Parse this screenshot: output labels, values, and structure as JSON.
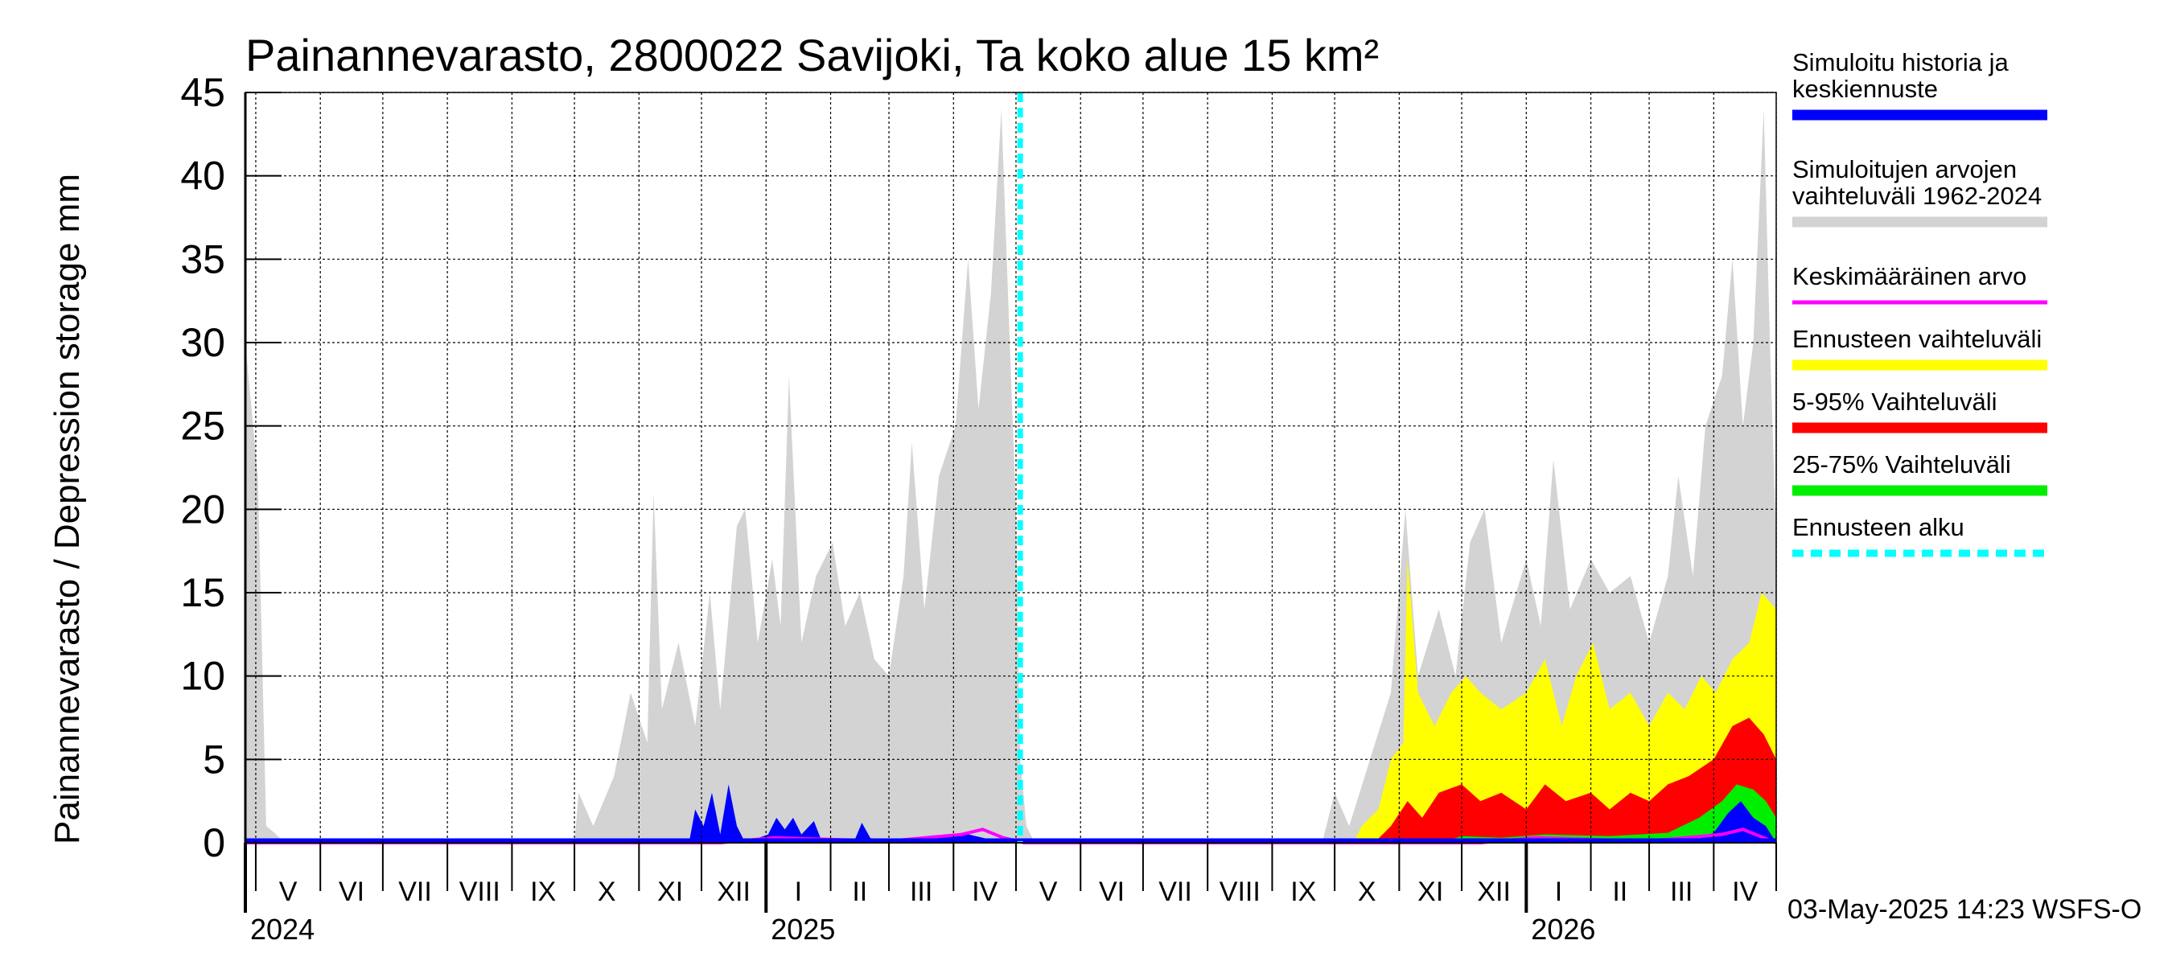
{
  "chart_data": {
    "type": "area",
    "title": "Painannevarasto, 2800022 Savijoki, Ta koko alue 15 km²",
    "ylabel": "Painannevarasto / Depression storage    mm",
    "ylim": [
      0,
      45
    ],
    "yticks": [
      0,
      5,
      10,
      15,
      20,
      25,
      30,
      35,
      40,
      45
    ],
    "x_range": [
      "2024-04-26",
      "2026-05-01"
    ],
    "forecast_start": "2025-05-03",
    "months": [
      {
        "label": "V",
        "date": "2024-05-01"
      },
      {
        "label": "VI",
        "date": "2024-06-01"
      },
      {
        "label": "VII",
        "date": "2024-07-01"
      },
      {
        "label": "VIII",
        "date": "2024-08-01"
      },
      {
        "label": "IX",
        "date": "2024-09-01"
      },
      {
        "label": "X",
        "date": "2024-10-01"
      },
      {
        "label": "XI",
        "date": "2024-11-01"
      },
      {
        "label": "XII",
        "date": "2024-12-01"
      },
      {
        "label": "I",
        "date": "2025-01-01"
      },
      {
        "label": "II",
        "date": "2025-02-01"
      },
      {
        "label": "III",
        "date": "2025-03-01"
      },
      {
        "label": "IV",
        "date": "2025-04-01"
      },
      {
        "label": "V",
        "date": "2025-05-01"
      },
      {
        "label": "VI",
        "date": "2025-06-01"
      },
      {
        "label": "VII",
        "date": "2025-07-01"
      },
      {
        "label": "VIII",
        "date": "2025-08-01"
      },
      {
        "label": "IX",
        "date": "2025-09-01"
      },
      {
        "label": "X",
        "date": "2025-10-01"
      },
      {
        "label": "XI",
        "date": "2025-11-01"
      },
      {
        "label": "XII",
        "date": "2025-12-01"
      },
      {
        "label": "I",
        "date": "2026-01-01"
      },
      {
        "label": "II",
        "date": "2026-02-01"
      },
      {
        "label": "III",
        "date": "2026-03-01"
      },
      {
        "label": "IV",
        "date": "2026-04-01"
      },
      {
        "label": "",
        "date": "2026-05-01"
      }
    ],
    "years": [
      {
        "label": "2024",
        "date": "2024-04-26"
      },
      {
        "label": "2025",
        "date": "2025-01-01"
      },
      {
        "label": "2026",
        "date": "2026-01-01"
      }
    ],
    "series": [
      {
        "name": "Simuloitujen arvojen vaihteluväli 1962-2024",
        "color": "#d3d3d3",
        "kind": "band",
        "points": [
          [
            "2024-04-26",
            0,
            30
          ],
          [
            "2024-05-02",
            0,
            22
          ],
          [
            "2024-05-06",
            0,
            1
          ],
          [
            "2024-05-10",
            0,
            0.6
          ],
          [
            "2024-05-15",
            0,
            0
          ],
          [
            "2024-10-01",
            0,
            0
          ],
          [
            "2024-10-03",
            0,
            3
          ],
          [
            "2024-10-10",
            0,
            1
          ],
          [
            "2024-10-20",
            0,
            4
          ],
          [
            "2024-10-28",
            0,
            9
          ],
          [
            "2024-11-05",
            0,
            6
          ],
          [
            "2024-11-08",
            0,
            21
          ],
          [
            "2024-11-12",
            0,
            8
          ],
          [
            "2024-11-20",
            0,
            12
          ],
          [
            "2024-11-28",
            0,
            7
          ],
          [
            "2024-12-05",
            0,
            15
          ],
          [
            "2024-12-10",
            0,
            8
          ],
          [
            "2024-12-18",
            0,
            19
          ],
          [
            "2024-12-22",
            0,
            20
          ],
          [
            "2024-12-28",
            0,
            12
          ],
          [
            "2025-01-04",
            0,
            17
          ],
          [
            "2025-01-08",
            0,
            13
          ],
          [
            "2025-01-12",
            0,
            28
          ],
          [
            "2025-01-18",
            0,
            12
          ],
          [
            "2025-01-25",
            0,
            16
          ],
          [
            "2025-02-02",
            0,
            18
          ],
          [
            "2025-02-08",
            0,
            13
          ],
          [
            "2025-02-15",
            0,
            15
          ],
          [
            "2025-02-22",
            0,
            11
          ],
          [
            "2025-03-01",
            0,
            10
          ],
          [
            "2025-03-08",
            0,
            16
          ],
          [
            "2025-03-12",
            0,
            24
          ],
          [
            "2025-03-18",
            0,
            14
          ],
          [
            "2025-03-25",
            0,
            22
          ],
          [
            "2025-04-02",
            0,
            25
          ],
          [
            "2025-04-08",
            0,
            35
          ],
          [
            "2025-04-13",
            0,
            26
          ],
          [
            "2025-04-19",
            0,
            33
          ],
          [
            "2025-04-24",
            0,
            44
          ],
          [
            "2025-04-28",
            0,
            30
          ],
          [
            "2025-05-01",
            0,
            20
          ],
          [
            "2025-05-03",
            0,
            5
          ],
          [
            "2025-05-06",
            0,
            1
          ],
          [
            "2025-05-10",
            0,
            0
          ],
          [
            "2025-09-25",
            0,
            0
          ],
          [
            "2025-10-01",
            0,
            3
          ],
          [
            "2025-10-08",
            0,
            1
          ],
          [
            "2025-10-18",
            0,
            5
          ],
          [
            "2025-10-28",
            0,
            9
          ],
          [
            "2025-11-04",
            0,
            20
          ],
          [
            "2025-11-10",
            0,
            10
          ],
          [
            "2025-11-20",
            0,
            14
          ],
          [
            "2025-11-28",
            0,
            10
          ],
          [
            "2025-12-05",
            0,
            18
          ],
          [
            "2025-12-12",
            0,
            20
          ],
          [
            "2025-12-20",
            0,
            12
          ],
          [
            "2026-01-01",
            0,
            17
          ],
          [
            "2026-01-08",
            0,
            13
          ],
          [
            "2026-01-14",
            0,
            23
          ],
          [
            "2026-01-22",
            0,
            14
          ],
          [
            "2026-02-01",
            0,
            17
          ],
          [
            "2026-02-10",
            0,
            15
          ],
          [
            "2026-02-20",
            0,
            16
          ],
          [
            "2026-03-01",
            0,
            12
          ],
          [
            "2026-03-10",
            0,
            16
          ],
          [
            "2026-03-15",
            0,
            22
          ],
          [
            "2026-03-22",
            0,
            16
          ],
          [
            "2026-03-28",
            0,
            25
          ],
          [
            "2026-04-05",
            0,
            28
          ],
          [
            "2026-04-10",
            0,
            35
          ],
          [
            "2026-04-15",
            0,
            25
          ],
          [
            "2026-04-20",
            0,
            30
          ],
          [
            "2026-04-25",
            0,
            44
          ],
          [
            "2026-04-28",
            0,
            30
          ],
          [
            "2026-05-01",
            0,
            18
          ]
        ]
      },
      {
        "name": "Ennusteen vaihteluväli",
        "color": "#ffff00",
        "kind": "band",
        "points": [
          [
            "2025-10-10",
            0,
            0
          ],
          [
            "2025-10-14",
            0,
            1
          ],
          [
            "2025-10-22",
            0,
            2
          ],
          [
            "2025-10-28",
            0,
            5
          ],
          [
            "2025-11-03",
            0,
            6
          ],
          [
            "2025-11-05",
            0,
            17
          ],
          [
            "2025-11-10",
            0,
            9
          ],
          [
            "2025-11-18",
            0,
            7
          ],
          [
            "2025-11-26",
            0,
            9
          ],
          [
            "2025-12-03",
            0,
            10
          ],
          [
            "2025-12-10",
            0,
            9
          ],
          [
            "2025-12-20",
            0,
            8
          ],
          [
            "2026-01-01",
            0,
            9
          ],
          [
            "2026-01-10",
            0,
            11
          ],
          [
            "2026-01-18",
            0,
            7
          ],
          [
            "2026-01-25",
            0,
            10
          ],
          [
            "2026-02-02",
            0,
            12
          ],
          [
            "2026-02-10",
            0,
            8
          ],
          [
            "2026-02-20",
            0,
            9
          ],
          [
            "2026-03-01",
            0,
            7
          ],
          [
            "2026-03-10",
            0,
            9
          ],
          [
            "2026-03-18",
            0,
            8
          ],
          [
            "2026-03-26",
            0,
            10
          ],
          [
            "2026-04-02",
            0,
            9
          ],
          [
            "2026-04-10",
            0,
            11
          ],
          [
            "2026-04-18",
            0,
            12
          ],
          [
            "2026-04-24",
            0,
            15
          ],
          [
            "2026-05-01",
            0,
            14
          ]
        ]
      },
      {
        "name": "5-95% Vaihteluväli",
        "color": "#ff0000",
        "kind": "band",
        "points": [
          [
            "2025-10-20",
            0,
            0
          ],
          [
            "2025-10-28",
            0,
            1
          ],
          [
            "2025-11-05",
            0,
            2.5
          ],
          [
            "2025-11-12",
            0,
            1.5
          ],
          [
            "2025-11-20",
            0,
            3
          ],
          [
            "2025-12-01",
            0,
            3.5
          ],
          [
            "2025-12-10",
            0,
            2.5
          ],
          [
            "2025-12-20",
            0,
            3
          ],
          [
            "2026-01-01",
            0,
            2
          ],
          [
            "2026-01-10",
            0,
            3.5
          ],
          [
            "2026-01-20",
            0,
            2.5
          ],
          [
            "2026-02-01",
            0,
            3
          ],
          [
            "2026-02-10",
            0,
            2
          ],
          [
            "2026-02-20",
            0,
            3
          ],
          [
            "2026-03-01",
            0,
            2.5
          ],
          [
            "2026-03-10",
            0,
            3.5
          ],
          [
            "2026-03-20",
            0,
            4
          ],
          [
            "2026-04-01",
            0,
            5
          ],
          [
            "2026-04-10",
            0,
            7
          ],
          [
            "2026-04-18",
            0,
            7.5
          ],
          [
            "2026-04-25",
            0,
            6.5
          ],
          [
            "2026-05-01",
            0,
            5
          ]
        ]
      },
      {
        "name": "25-75% Vaihteluväli",
        "color": "#00ee00",
        "kind": "band",
        "points": [
          [
            "2025-11-20",
            0,
            0
          ],
          [
            "2025-12-01",
            0,
            0.4
          ],
          [
            "2025-12-20",
            0,
            0.3
          ],
          [
            "2026-01-10",
            0,
            0.5
          ],
          [
            "2026-02-10",
            0,
            0.4
          ],
          [
            "2026-03-10",
            0,
            0.6
          ],
          [
            "2026-03-25",
            0,
            1.5
          ],
          [
            "2026-04-05",
            0,
            2.5
          ],
          [
            "2026-04-12",
            0,
            3.5
          ],
          [
            "2026-04-20",
            0,
            3.2
          ],
          [
            "2026-04-26",
            0,
            2.5
          ],
          [
            "2026-05-01",
            0,
            1.5
          ]
        ]
      },
      {
        "name": "Simuloitu historia ja keskiennuste",
        "color": "#0000ff",
        "kind": "band",
        "points": [
          [
            "2024-04-26",
            0,
            0
          ],
          [
            "2024-11-25",
            0,
            0
          ],
          [
            "2024-11-28",
            0,
            2
          ],
          [
            "2024-12-02",
            0,
            1
          ],
          [
            "2024-12-06",
            0,
            3
          ],
          [
            "2024-12-10",
            0,
            0.5
          ],
          [
            "2024-12-14",
            0,
            3.5
          ],
          [
            "2024-12-18",
            0,
            1
          ],
          [
            "2024-12-22",
            0,
            0
          ],
          [
            "2025-01-02",
            0,
            0.5
          ],
          [
            "2025-01-06",
            0,
            1.5
          ],
          [
            "2025-01-10",
            0,
            0.8
          ],
          [
            "2025-01-14",
            0,
            1.5
          ],
          [
            "2025-01-18",
            0,
            0.5
          ],
          [
            "2025-01-24",
            0,
            1.3
          ],
          [
            "2025-01-28",
            0,
            0
          ],
          [
            "2025-02-12",
            0,
            0
          ],
          [
            "2025-02-16",
            0,
            1.2
          ],
          [
            "2025-02-20",
            0,
            0.3
          ],
          [
            "2025-02-24",
            0,
            0
          ],
          [
            "2025-03-20",
            0,
            0
          ],
          [
            "2025-03-26",
            0,
            0.4
          ],
          [
            "2025-04-05",
            0,
            0.6
          ],
          [
            "2025-04-15",
            0,
            0.3
          ],
          [
            "2025-04-25",
            0,
            0
          ],
          [
            "2026-03-20",
            0,
            0
          ],
          [
            "2026-04-01",
            0,
            0.6
          ],
          [
            "2026-04-08",
            0,
            1.8
          ],
          [
            "2026-04-14",
            0,
            2.5
          ],
          [
            "2026-04-20",
            0,
            1.5
          ],
          [
            "2026-04-26",
            0,
            1
          ],
          [
            "2026-05-01",
            0,
            0
          ]
        ]
      },
      {
        "name": "Keskimääräinen arvo",
        "color": "#ff00ff",
        "kind": "line",
        "points": [
          [
            "2024-04-26",
            0
          ],
          [
            "2024-12-10",
            0
          ],
          [
            "2025-01-05",
            0.3
          ],
          [
            "2025-02-01",
            0.2
          ],
          [
            "2025-03-01",
            0.1
          ],
          [
            "2025-04-05",
            0.5
          ],
          [
            "2025-04-15",
            0.8
          ],
          [
            "2025-04-25",
            0.3
          ],
          [
            "2025-05-05",
            0
          ],
          [
            "2025-12-10",
            0
          ],
          [
            "2026-01-05",
            0.3
          ],
          [
            "2026-02-01",
            0.2
          ],
          [
            "2026-03-01",
            0.1
          ],
          [
            "2026-04-05",
            0.5
          ],
          [
            "2026-04-15",
            0.8
          ],
          [
            "2026-04-25",
            0.3
          ],
          [
            "2026-05-01",
            0
          ]
        ]
      }
    ]
  },
  "legend": {
    "items": [
      {
        "label1": "Simuloitu historia ja",
        "label2": "keskiennuste",
        "color": "#0000ff",
        "style": "solid"
      },
      {
        "label1": "Simuloitujen arvojen",
        "label2": "vaihteluväli 1962-2024",
        "color": "#d3d3d3",
        "style": "solid"
      },
      {
        "label1": "Keskimääräinen arvo",
        "label2": "",
        "color": "#ff00ff",
        "style": "thin"
      },
      {
        "label1": "Ennusteen vaihteluväli",
        "label2": "",
        "color": "#ffff00",
        "style": "solid"
      },
      {
        "label1": "5-95% Vaihteluväli",
        "label2": "",
        "color": "#ff0000",
        "style": "solid"
      },
      {
        "label1": "25-75% Vaihteluväli",
        "label2": "",
        "color": "#00ee00",
        "style": "solid"
      },
      {
        "label1": "Ennusteen alku",
        "label2": "",
        "color": "#00ffff",
        "style": "dashed"
      }
    ]
  },
  "footer": {
    "timestamp": "03-May-2025 14:23 WSFS-O"
  }
}
